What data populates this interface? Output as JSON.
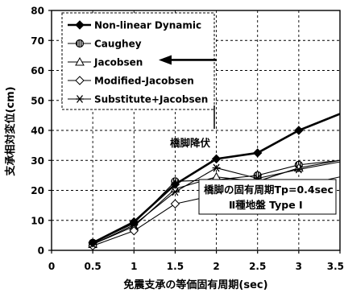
{
  "chart_data": {
    "type": "line",
    "xlabel": "免震支承の等価固有周期(sec)",
    "ylabel": "支承相対変位(cm)",
    "xlim": [
      0,
      3.5
    ],
    "ylim": [
      0,
      80
    ],
    "xticks": [
      "0",
      "0.5",
      "1",
      "1.5",
      "2",
      "2.5",
      "3",
      "3.5"
    ],
    "yticks": [
      "0",
      "10",
      "20",
      "30",
      "40",
      "50",
      "60",
      "70",
      "80"
    ],
    "grid": true,
    "legend_position": "top-left",
    "series": [
      {
        "name": "Non-linear Dynamic",
        "marker": "diamond-filled",
        "stroke_width": 2.6,
        "x": [
          0.5,
          1.0,
          1.5,
          2.0,
          2.5,
          3.0,
          3.5
        ],
        "y": [
          2.5,
          9.5,
          22.0,
          30.5,
          32.5,
          40.0,
          45.5
        ]
      },
      {
        "name": "Caughey",
        "marker": "circle-hatched",
        "stroke_width": 1.1,
        "x": [
          0.5,
          1.0,
          1.5,
          2.0,
          2.5,
          3.0,
          3.5
        ],
        "y": [
          2.5,
          9.0,
          23.0,
          23.5,
          25.0,
          28.5,
          30.0
        ]
      },
      {
        "name": "Jacobsen",
        "marker": "triangle-open",
        "stroke_width": 1.1,
        "x": [
          0.5,
          1.0,
          1.5,
          2.0,
          2.5,
          3.0,
          3.5
        ],
        "y": [
          2.0,
          8.0,
          20.5,
          24.5,
          23.0,
          27.5,
          30.0
        ]
      },
      {
        "name": "Modified-Jacobsen",
        "marker": "diamond-open",
        "stroke_width": 1.1,
        "x": [
          0.5,
          1.0,
          1.5,
          2.0,
          2.5,
          3.0,
          3.5
        ],
        "y": [
          1.5,
          6.5,
          15.5,
          18.5,
          20.5,
          21.5,
          24.5
        ]
      },
      {
        "name": "Substitute+Jacobsen",
        "marker": "asterisk",
        "stroke_width": 1.1,
        "x": [
          0.5,
          1.0,
          1.5,
          2.0,
          2.5,
          3.0,
          3.5
        ],
        "y": [
          2.0,
          8.5,
          19.5,
          27.5,
          24.0,
          27.0,
          29.5
        ]
      }
    ],
    "annotations": {
      "arrow_label": "橋脚降伏",
      "arrow_from_x": 2.0,
      "arrow_to_x": 1.3,
      "arrow_y": 63.5,
      "info_line1": "橋脚の固有周期Tp=0.4sec",
      "info_line2": "Ⅱ種地盤  Type Ⅰ"
    }
  }
}
